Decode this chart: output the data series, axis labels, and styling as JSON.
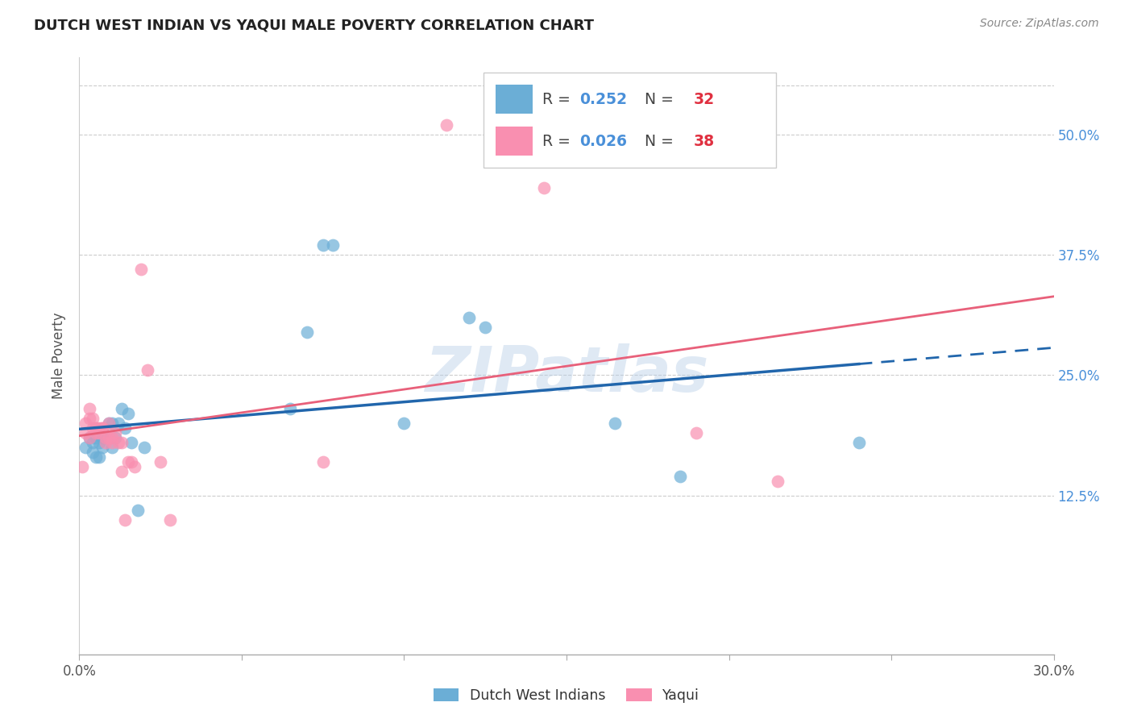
{
  "title": "DUTCH WEST INDIAN VS YAQUI MALE POVERTY CORRELATION CHART",
  "source": "Source: ZipAtlas.com",
  "ylabel": "Male Poverty",
  "y_ticks": [
    0.125,
    0.25,
    0.375,
    0.5
  ],
  "y_tick_labels": [
    "12.5%",
    "25.0%",
    "37.5%",
    "50.0%"
  ],
  "xlim": [
    0.0,
    0.3
  ],
  "ylim": [
    -0.04,
    0.58
  ],
  "blue_label": "Dutch West Indians",
  "pink_label": "Yaqui",
  "blue_R": "0.252",
  "blue_N": "32",
  "pink_R": "0.026",
  "pink_N": "38",
  "blue_color": "#6baed6",
  "pink_color": "#f98fb0",
  "blue_line_color": "#2166ac",
  "pink_line_color": "#e8607a",
  "background_color": "#ffffff",
  "watermark": "ZIPatlas",
  "blue_x": [
    0.002,
    0.003,
    0.004,
    0.004,
    0.005,
    0.005,
    0.006,
    0.006,
    0.007,
    0.007,
    0.008,
    0.009,
    0.01,
    0.01,
    0.011,
    0.012,
    0.013,
    0.014,
    0.015,
    0.016,
    0.018,
    0.02,
    0.065,
    0.07,
    0.075,
    0.078,
    0.1,
    0.12,
    0.125,
    0.165,
    0.185,
    0.24
  ],
  "blue_y": [
    0.175,
    0.185,
    0.17,
    0.18,
    0.185,
    0.165,
    0.18,
    0.165,
    0.185,
    0.175,
    0.185,
    0.2,
    0.2,
    0.175,
    0.185,
    0.2,
    0.215,
    0.195,
    0.21,
    0.18,
    0.11,
    0.175,
    0.215,
    0.295,
    0.385,
    0.385,
    0.2,
    0.31,
    0.3,
    0.2,
    0.145,
    0.18
  ],
  "pink_x": [
    0.001,
    0.002,
    0.002,
    0.003,
    0.003,
    0.003,
    0.004,
    0.004,
    0.005,
    0.005,
    0.005,
    0.006,
    0.006,
    0.007,
    0.007,
    0.008,
    0.008,
    0.009,
    0.009,
    0.01,
    0.01,
    0.011,
    0.012,
    0.013,
    0.013,
    0.014,
    0.015,
    0.016,
    0.017,
    0.019,
    0.021,
    0.025,
    0.028,
    0.075,
    0.113,
    0.143,
    0.19,
    0.215
  ],
  "pink_y": [
    0.155,
    0.2,
    0.19,
    0.205,
    0.215,
    0.185,
    0.195,
    0.205,
    0.195,
    0.19,
    0.195,
    0.195,
    0.19,
    0.195,
    0.195,
    0.18,
    0.185,
    0.185,
    0.2,
    0.18,
    0.185,
    0.19,
    0.18,
    0.18,
    0.15,
    0.1,
    0.16,
    0.16,
    0.155,
    0.36,
    0.255,
    0.16,
    0.1,
    0.16,
    0.51,
    0.445,
    0.19,
    0.14
  ],
  "x_tick_positions": [
    0.0,
    0.05,
    0.1,
    0.15,
    0.2,
    0.25,
    0.3
  ],
  "x_tick_show_labels": [
    true,
    false,
    false,
    false,
    false,
    false,
    true
  ]
}
